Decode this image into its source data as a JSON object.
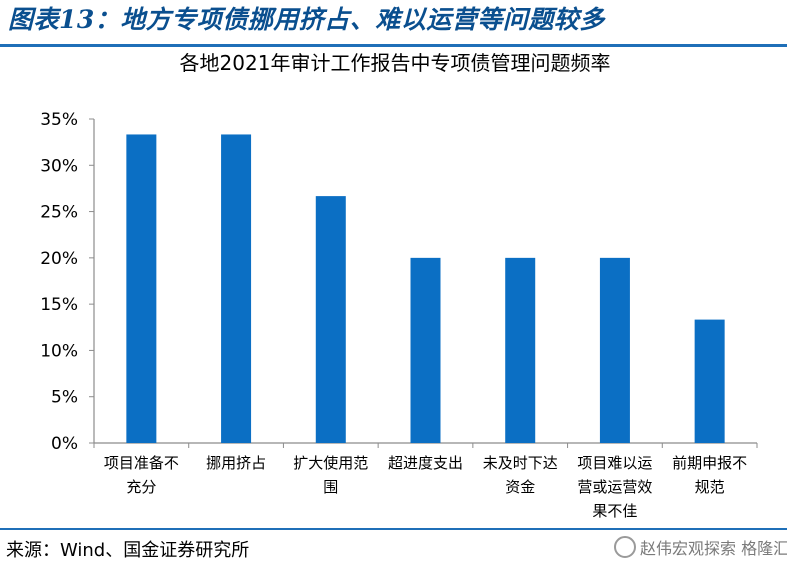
{
  "figure": {
    "title": "图表13：地方专项债挪用挤占、难以运营等问题较多",
    "source": "来源：Wind、国金证券研究所",
    "watermark": "赵伟宏观探索 格隆汇"
  },
  "colors": {
    "bar": "#0b6fc4",
    "title": "#0a4f8f",
    "rule": "#1f6fb8"
  },
  "chart_data": {
    "type": "bar",
    "title": "各地2021年审计工作报告中专项债管理问题频率",
    "categories": [
      [
        "项目准备不",
        "充分"
      ],
      [
        "挪用挤占"
      ],
      [
        "扩大使用范",
        "围"
      ],
      [
        "超进度支出"
      ],
      [
        "未及时下达",
        "资金"
      ],
      [
        "项目难以运",
        "营或运营效",
        "果不佳"
      ],
      [
        "前期申报不",
        "规范"
      ]
    ],
    "values": [
      0.3333,
      0.3333,
      0.2667,
      0.2,
      0.2,
      0.2,
      0.1333
    ],
    "y_ticks": [
      "0%",
      "5%",
      "10%",
      "15%",
      "20%",
      "25%",
      "30%",
      "35%"
    ],
    "ylim": [
      0,
      0.35
    ],
    "grid": false,
    "legend": "none"
  }
}
